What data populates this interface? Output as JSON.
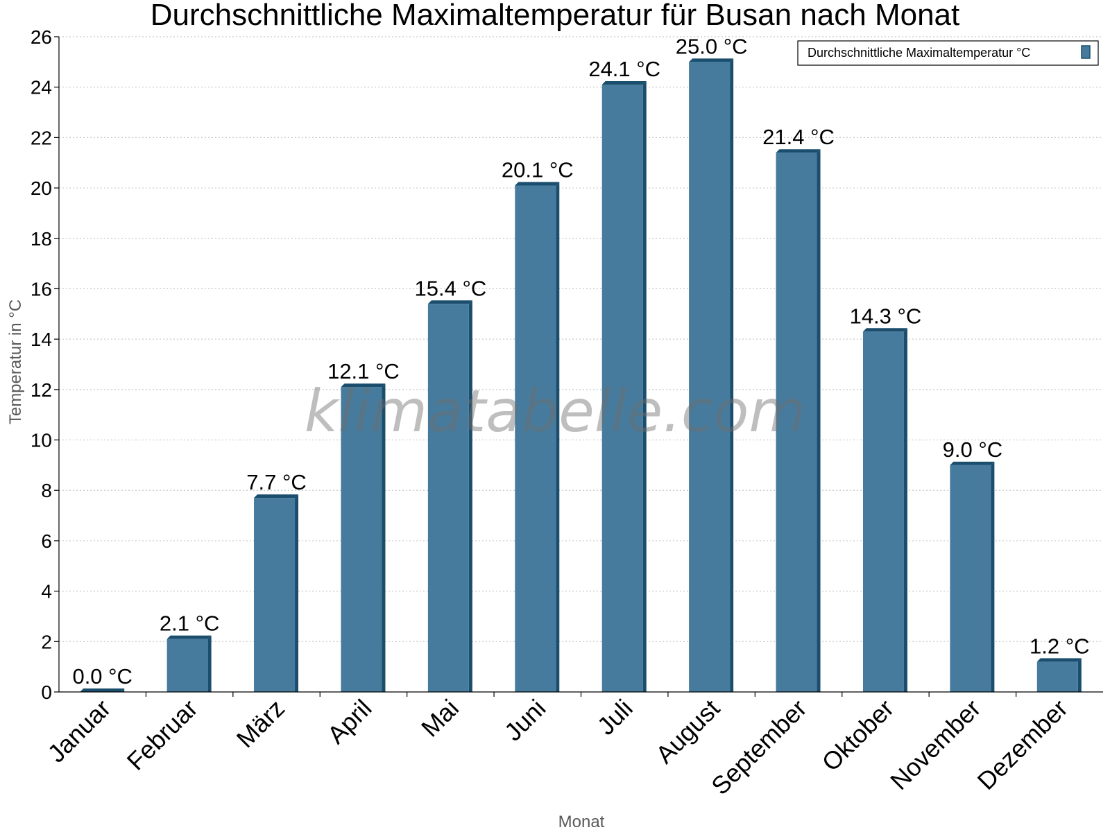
{
  "chart_data": {
    "type": "bar",
    "title": "Durchschnittliche Maximaltemperatur für Busan nach Monat",
    "xlabel": "Monat",
    "ylabel": "Temperatur in °C",
    "categories": [
      "Januar",
      "Februar",
      "März",
      "April",
      "Mai",
      "Juni",
      "Juli",
      "August",
      "September",
      "Oktober",
      "November",
      "Dezember"
    ],
    "series": [
      {
        "name": "Durchschnittliche Maximaltemperatur °C",
        "values": [
          0.0,
          2.1,
          7.7,
          12.1,
          15.4,
          20.1,
          24.1,
          25.0,
          21.4,
          14.3,
          9.0,
          1.2
        ],
        "labels": [
          "0.0 °C",
          "2.1 °C",
          "7.7 °C",
          "12.1 °C",
          "15.4 °C",
          "20.1 °C",
          "24.1 °C",
          "25.0 °C",
          "21.4 °C",
          "14.3 °C",
          "9.0 °C",
          "1.2 °C"
        ]
      }
    ],
    "ylim": [
      0,
      26
    ],
    "yticks": [
      0,
      2,
      4,
      6,
      8,
      10,
      12,
      14,
      16,
      18,
      20,
      22,
      24,
      26
    ],
    "grid": true,
    "legend": "top-right",
    "bar_color": "#467b9d",
    "bar_shade_color": "#1b4d6d"
  },
  "watermark": "klimatabelle.com"
}
